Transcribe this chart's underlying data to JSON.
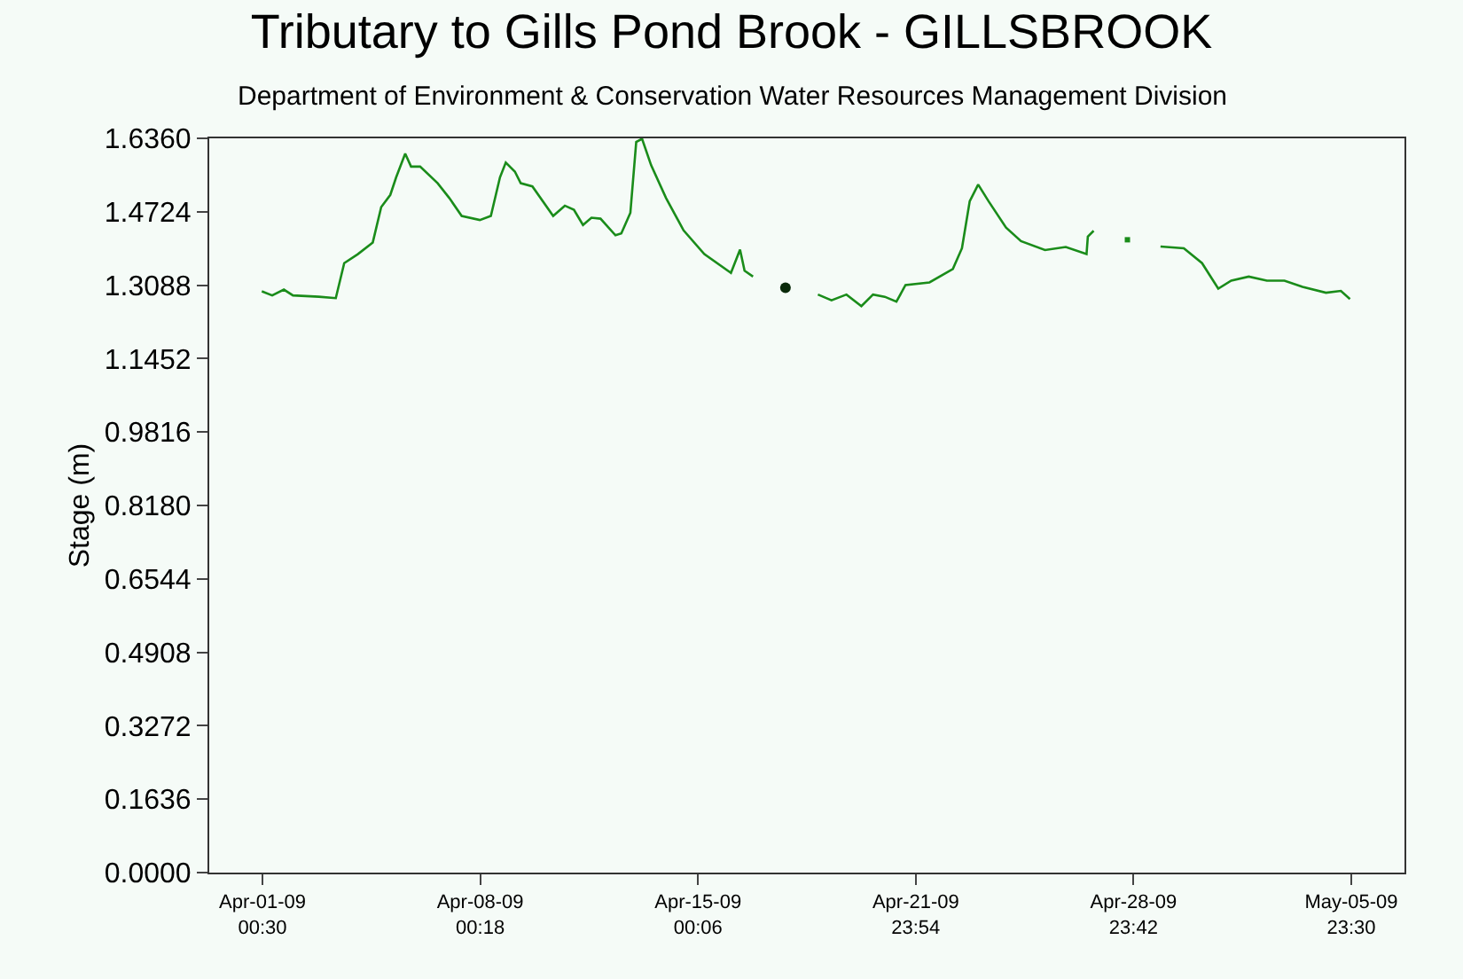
{
  "chart_data": {
    "type": "line",
    "title": "Tributary to Gills Pond Brook - GILLSBROOK",
    "subtitle": "Department of Environment & Conservation Water Resources Management Division",
    "ylabel": "Stage (m)",
    "x": [
      "--04-01T00:00",
      "--04-01T08:00",
      "--04-01T17:00",
      "--04-02T00:00",
      "--04-02T20:00",
      "--04-03T09:00",
      "--04-03T15:30",
      "--04-04T02:00",
      "--04-04T13:30",
      "--04-04T20:00",
      "--04-05T03:00",
      "--04-05T07:30",
      "--04-05T14:30",
      "--04-05T19:00",
      "--04-06T02:00",
      "--04-06T15:30",
      "--04-07T00:30",
      "--04-07T10:00",
      "--04-08T00:00",
      "--04-08T08:30",
      "--04-08T15:30",
      "--04-08T20:00",
      "--04-09T03:00",
      "--04-09T07:30",
      "--04-09T16:30",
      "--04-10T08:30",
      "--04-10T17:30",
      "--04-11T00:30",
      "--04-11T07:30",
      "--04-11T14:00",
      "--04-11T21:00",
      "--04-12T08:30",
      "--04-12T13:00",
      "--04-12T20:00",
      "--04-13T00:30",
      "--04-13T05:00",
      "--04-13T12:00",
      "--04-13T23:30",
      "--04-14T13:00",
      "--04-15T05:00",
      "--04-16T01:30",
      "--04-16T08:30",
      "--04-16T12:00",
      "--04-16T18:30",
      "--04-17T19:30",
      "--04-18T20:30",
      "--04-19T07:00",
      "--04-19T18:30",
      "--04-20T06:00",
      "--04-20T15:00",
      "--04-21T00:00",
      "--04-21T09:00",
      "--04-21T16:00",
      "--04-22T10:30",
      "--04-23T04:30",
      "--04-23T11:30",
      "--04-23T17:30",
      "--04-24T00:00",
      "--04-24T08:00",
      "--04-24T21:30",
      "--04-25T09:00",
      "--04-26T03:30",
      "--04-26T19:30",
      "--04-27T11:30",
      "--04-27T12:30",
      "--04-27T17:00",
      "--04-28T19:00",
      "--04-29T20:30",
      "--04-30T14:30",
      "--05-01T04:30",
      "--05-01T17:00",
      "--05-02T03:00",
      "--05-02T16:30",
      "--05-03T06:30",
      "--05-03T20:00",
      "--05-04T10:00",
      "--05-05T04:00",
      "--05-05T15:30",
      "--05-05T22:30"
    ],
    "series": [
      {
        "color": "#1a8c1a",
        "values": [
          1.295,
          1.286,
          1.299,
          1.286,
          1.283,
          1.28,
          1.358,
          1.378,
          1.404,
          1.483,
          1.51,
          1.549,
          1.602,
          1.573,
          1.573,
          1.536,
          1.503,
          1.463,
          1.454,
          1.463,
          1.549,
          1.582,
          1.562,
          1.536,
          1.529,
          1.463,
          1.486,
          1.477,
          1.443,
          1.459,
          1.457,
          1.42,
          1.424,
          1.47,
          1.628,
          1.635,
          1.576,
          1.503,
          1.431,
          1.378,
          1.336,
          1.388,
          1.341,
          1.328,
          null,
          1.288,
          1.275,
          1.288,
          1.262,
          1.288,
          1.283,
          1.272,
          1.309,
          1.315,
          1.345,
          1.391,
          1.496,
          1.533,
          1.496,
          1.437,
          1.407,
          1.387,
          1.394,
          1.378,
          1.417,
          1.43,
          null,
          1.395,
          1.391,
          1.358,
          1.301,
          1.319,
          1.328,
          1.319,
          1.319,
          1.305,
          1.292,
          1.296,
          1.278
        ]
      },
      {
        "type": "scatter",
        "color": "#0a2a0a",
        "marker": "circle",
        "x": [
          "--04-17T19:30"
        ],
        "values": [
          1.303
        ]
      },
      {
        "type": "scatter",
        "color": "#1a8c1a",
        "marker": "square",
        "x": [
          "--04-28T19:00"
        ],
        "values": [
          1.41
        ]
      }
    ],
    "xlim": [
      "--03-30T07:30",
      "--05-07T16:30"
    ],
    "xticks": [
      {
        "value": "--04-01T00:30",
        "label": "Apr-01-09\n00:30"
      },
      {
        "value": "--04-08T00:18",
        "label": "Apr-08-09\n00:18"
      },
      {
        "value": "--04-15T00:06",
        "label": "Apr-15-09\n00:06"
      },
      {
        "value": "--04-21T23:54",
        "label": "Apr-21-09\n23:54"
      },
      {
        "value": "--04-28T23:42",
        "label": "Apr-28-09\n23:42"
      },
      {
        "value": "--05-05T23:30",
        "label": "May-05-09\n23:30"
      }
    ],
    "ylim": [
      0,
      1.636
    ],
    "yticks": [
      {
        "value": 0,
        "label": "0.0000"
      },
      {
        "value": 0.1636,
        "label": "0.1636"
      },
      {
        "value": 0.3272,
        "label": "0.3272"
      },
      {
        "value": 0.4908,
        "label": "0.4908"
      },
      {
        "value": 0.6544,
        "label": "0.6544"
      },
      {
        "value": 0.818,
        "label": "0.8180"
      },
      {
        "value": 0.9816,
        "label": "0.9816"
      },
      {
        "value": 1.1452,
        "label": "1.1452"
      },
      {
        "value": 1.3088,
        "label": "1.3088"
      },
      {
        "value": 1.4724,
        "label": "1.4724"
      },
      {
        "value": 1.636,
        "label": "1.6360"
      }
    ]
  }
}
